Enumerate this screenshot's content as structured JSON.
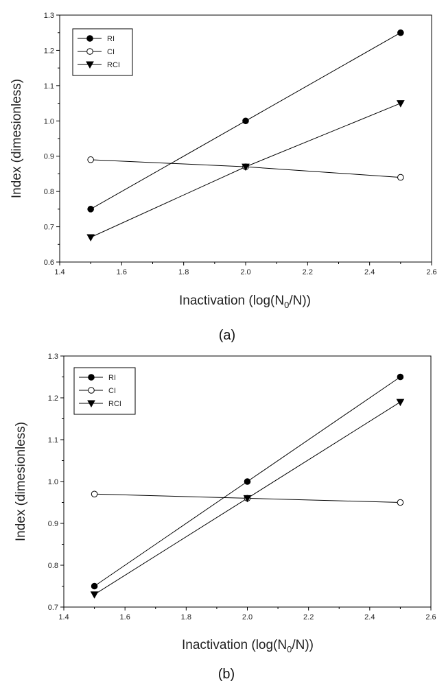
{
  "chart_data": [
    {
      "type": "line",
      "panel_label": "(a)",
      "xlabel_main": "Inactivation (log(N",
      "xlabel_sub": "0",
      "xlabel_tail": "/N))",
      "ylabel": "Index (dimesionless)",
      "xlim": [
        1.4,
        2.6
      ],
      "ylim": [
        0.6,
        1.3
      ],
      "x_ticks": [
        "1.4",
        "1.6",
        "1.8",
        "2.0",
        "2.2",
        "2.4",
        "2.6"
      ],
      "y_ticks": [
        "0.6",
        "0.7",
        "0.8",
        "0.9",
        "1.0",
        "1.1",
        "1.2",
        "1.3"
      ],
      "legend_position": "top-left",
      "grid": false,
      "x": [
        1.5,
        2.0,
        2.5
      ],
      "series": [
        {
          "name": "RI",
          "marker": "filled-circle",
          "values": [
            0.75,
            1.0,
            1.25
          ]
        },
        {
          "name": "CI",
          "marker": "open-circle",
          "values": [
            0.89,
            0.87,
            0.84
          ]
        },
        {
          "name": "RCI",
          "marker": "filled-triangle-down",
          "values": [
            0.67,
            0.87,
            1.05
          ]
        }
      ]
    },
    {
      "type": "line",
      "panel_label": "(b)",
      "xlabel_main": "Inactivation (log(N",
      "xlabel_sub": "0",
      "xlabel_tail": "/N))",
      "ylabel": "Index (dimesionless)",
      "xlim": [
        1.4,
        2.6
      ],
      "ylim": [
        0.7,
        1.3
      ],
      "x_ticks": [
        "1.4",
        "1.6",
        "1.8",
        "2.0",
        "2.2",
        "2.4",
        "2.6"
      ],
      "y_ticks": [
        "0.7",
        "0.8",
        "0.9",
        "1.0",
        "1.1",
        "1.2",
        "1.3"
      ],
      "legend_position": "top-left",
      "grid": false,
      "x": [
        1.5,
        2.0,
        2.5
      ],
      "series": [
        {
          "name": "RI",
          "marker": "filled-circle",
          "values": [
            0.75,
            1.0,
            1.25
          ]
        },
        {
          "name": "CI",
          "marker": "open-circle",
          "values": [
            0.97,
            0.96,
            0.95
          ]
        },
        {
          "name": "RCI",
          "marker": "filled-triangle-down",
          "values": [
            0.73,
            0.96,
            1.19
          ]
        }
      ]
    }
  ]
}
